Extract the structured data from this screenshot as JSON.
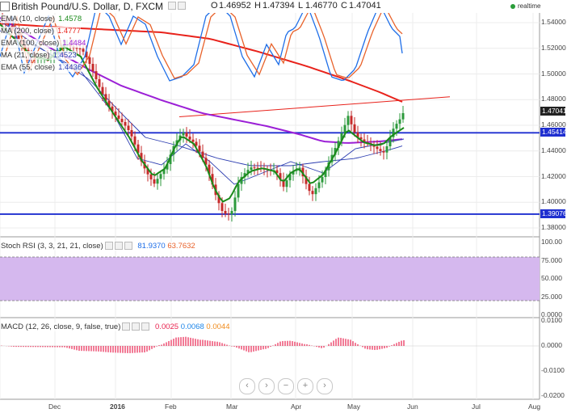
{
  "header": {
    "symbol": "British Pound/U.S. Dollar, D, FXCM",
    "open_label": "O",
    "open": "1.46952",
    "high_label": "H",
    "high": "1.47394",
    "low_label": "L",
    "low": "1.46770",
    "close_label": "C",
    "close": "1.47041",
    "realtime": "realtime"
  },
  "indicators": [
    {
      "label": "EMA (10, close)",
      "value": "1.4578",
      "color": "#1a8a1a"
    },
    {
      "label": "MA (200, close)",
      "value": "1.4777",
      "color": "#e8221b"
    },
    {
      "label": "EMA (100, close)",
      "value": "1.4484",
      "color": "#9b1fd6"
    },
    {
      "label": "MA (21, close)",
      "value": "1.4523",
      "color": "#2b3cb0"
    },
    {
      "label": "EMA (55, close)",
      "value": "1.4436",
      "color": "#2b3cb0"
    }
  ],
  "stoch_rsi": {
    "label": "Stoch RSI (3, 3, 21, 21, close)",
    "k": "81.9370",
    "d": "63.7632",
    "k_color": "#1e6ee8",
    "d_color": "#e8622b"
  },
  "macd": {
    "label": "MACD (12, 26, close, 9, false, true)",
    "hist": "0.0025",
    "macd": "0.0068",
    "signal": "0.0044",
    "hist_color": "#e8234f",
    "macd_color": "#1e86e8",
    "signal_color": "#f08c1e"
  },
  "price_axis": [
    "1.54000",
    "1.52000",
    "1.50000",
    "1.48000",
    "1.46000",
    "1.44000",
    "1.42000",
    "1.40000",
    "1.38000"
  ],
  "price_tags": [
    {
      "text": "1.47041",
      "bg": "#222222",
      "fg": "#ffffff"
    },
    {
      "text": "1.45414",
      "bg": "#1f2fd0",
      "fg": "#ffffff"
    },
    {
      "text": "1.39076",
      "bg": "#1f2fd0",
      "fg": "#ffffff"
    }
  ],
  "rsi_axis": [
    "100.00",
    "75.000",
    "50.000",
    "25.000",
    "0.0000"
  ],
  "macd_axis": [
    "0.0100",
    "0.0000",
    "-0.0100",
    "-0.0200"
  ],
  "time_axis": [
    "Dec",
    "2016",
    "Feb",
    "Mar",
    "Apr",
    "May",
    "Jun",
    "Jul",
    "Aug"
  ],
  "zoom_buttons": [
    "‹",
    "›",
    "−",
    "+",
    "›"
  ],
  "chart_data": {
    "type": "line",
    "support_levels": [
      1.45414,
      1.39076
    ],
    "resistance_trend_from": 1.4666,
    "resistance_trend_to": 1.4822,
    "ylim": [
      1.378,
      1.55
    ]
  }
}
